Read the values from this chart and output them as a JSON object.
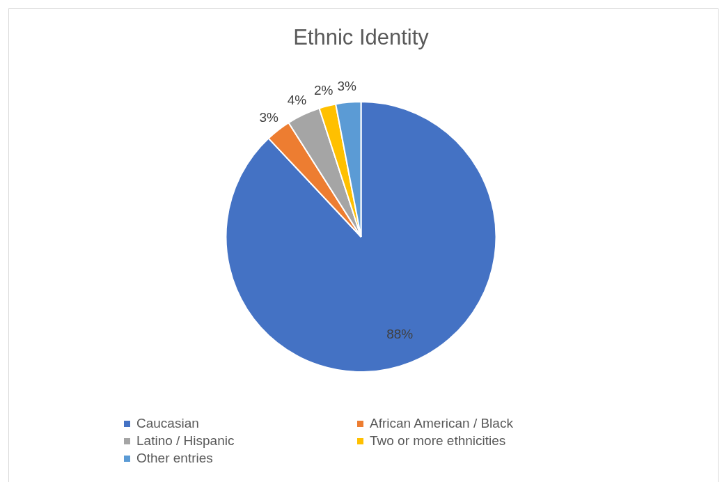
{
  "chart_data": {
    "type": "pie",
    "title": "Ethnic Identity",
    "categories": [
      "Caucasian",
      "African American / Black",
      "Latino / Hispanic",
      "Two or more ethnicities",
      "Other entries"
    ],
    "values": [
      88,
      3,
      4,
      2,
      3
    ],
    "colors": [
      "#4472c4",
      "#ed7d31",
      "#a5a5a5",
      "#ffc000",
      "#5b9bd5"
    ],
    "value_labels": [
      "88%",
      "3%",
      "4%",
      "2%",
      "3%"
    ],
    "legend": "bottom"
  }
}
